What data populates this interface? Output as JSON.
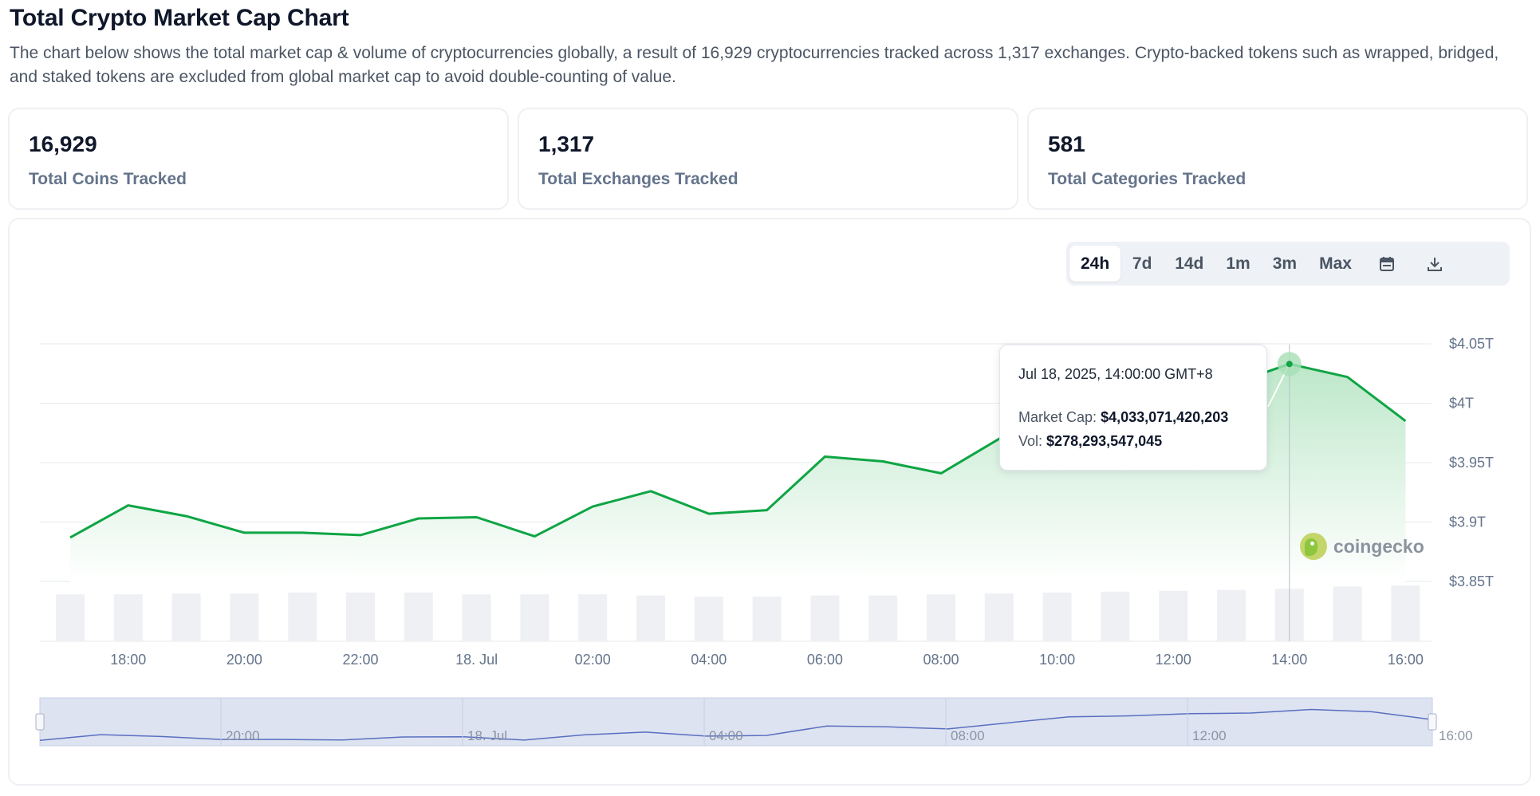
{
  "header": {
    "title": "Total Crypto Market Cap Chart",
    "description": "The chart below shows the total market cap & volume of cryptocurrencies globally, a result of 16,929 cryptocurrencies tracked across 1,317 exchanges. Crypto-backed tokens such as wrapped, bridged, and staked tokens are excluded from global market cap to avoid double-counting of value."
  },
  "stats": [
    {
      "value": "16,929",
      "label": "Total Coins Tracked"
    },
    {
      "value": "1,317",
      "label": "Total Exchanges Tracked"
    },
    {
      "value": "581",
      "label": "Total Categories Tracked"
    }
  ],
  "range": {
    "buttons": [
      "24h",
      "7d",
      "14d",
      "1m",
      "3m",
      "Max"
    ],
    "active": "24h",
    "icons": [
      "calendar-icon",
      "download-icon"
    ]
  },
  "tooltip": {
    "date": "Jul 18, 2025, 14:00:00 GMT+8",
    "market_cap_label": "Market Cap:",
    "market_cap_value": "$4,033,071,420,203",
    "vol_label": "Vol:",
    "vol_value": "$278,293,547,045"
  },
  "watermark": "coingecko",
  "colors": {
    "line": "#0ea544",
    "area_top": "#c7ebd2",
    "volume_bar": "#eef0f3",
    "navigator_fill": "#dde3f1",
    "navigator_line": "#5a6fc0",
    "grid": "#e6e9ee"
  },
  "chart_data": {
    "type": "area",
    "title": "",
    "x_tick_labels": [
      "18:00",
      "20:00",
      "22:00",
      "18. Jul",
      "02:00",
      "04:00",
      "06:00",
      "08:00",
      "10:00",
      "12:00",
      "14:00",
      "16:00"
    ],
    "y_tick_labels": [
      "$4.05T",
      "$4T",
      "$3.95T",
      "$3.9T",
      "$3.85T"
    ],
    "ylim": [
      3.8,
      4.05
    ],
    "y_unit": "trillion USD",
    "grid": true,
    "x_hours": [
      17,
      18,
      19,
      20,
      21,
      22,
      23,
      24,
      25,
      26,
      27,
      28,
      29,
      30,
      31,
      32,
      33,
      34,
      35,
      36,
      37,
      38,
      39,
      40
    ],
    "series": [
      {
        "values": [
          3.887,
          3.914,
          3.905,
          3.891,
          3.891,
          3.889,
          3.903,
          3.904,
          3.888,
          3.913,
          3.926,
          3.907,
          3.91,
          3.955,
          3.951,
          3.941,
          3.97,
          3.998,
          4.003,
          4.013,
          4.016,
          4.033,
          4.022,
          3.985
        ]
      },
      {
        "values": [
          0.21,
          0.21,
          0.214,
          0.214,
          0.218,
          0.218,
          0.218,
          0.21,
          0.21,
          0.21,
          0.205,
          0.2,
          0.2,
          0.205,
          0.205,
          0.21,
          0.214,
          0.218,
          0.222,
          0.226,
          0.23,
          0.235,
          0.245,
          0.25
        ]
      }
    ],
    "navigator_labels": [
      "20:00",
      "18. Jul",
      "04:00",
      "08:00",
      "12:00",
      "16:00"
    ],
    "highlighted_point": {
      "x_hour": 38,
      "value": 4.033
    }
  }
}
